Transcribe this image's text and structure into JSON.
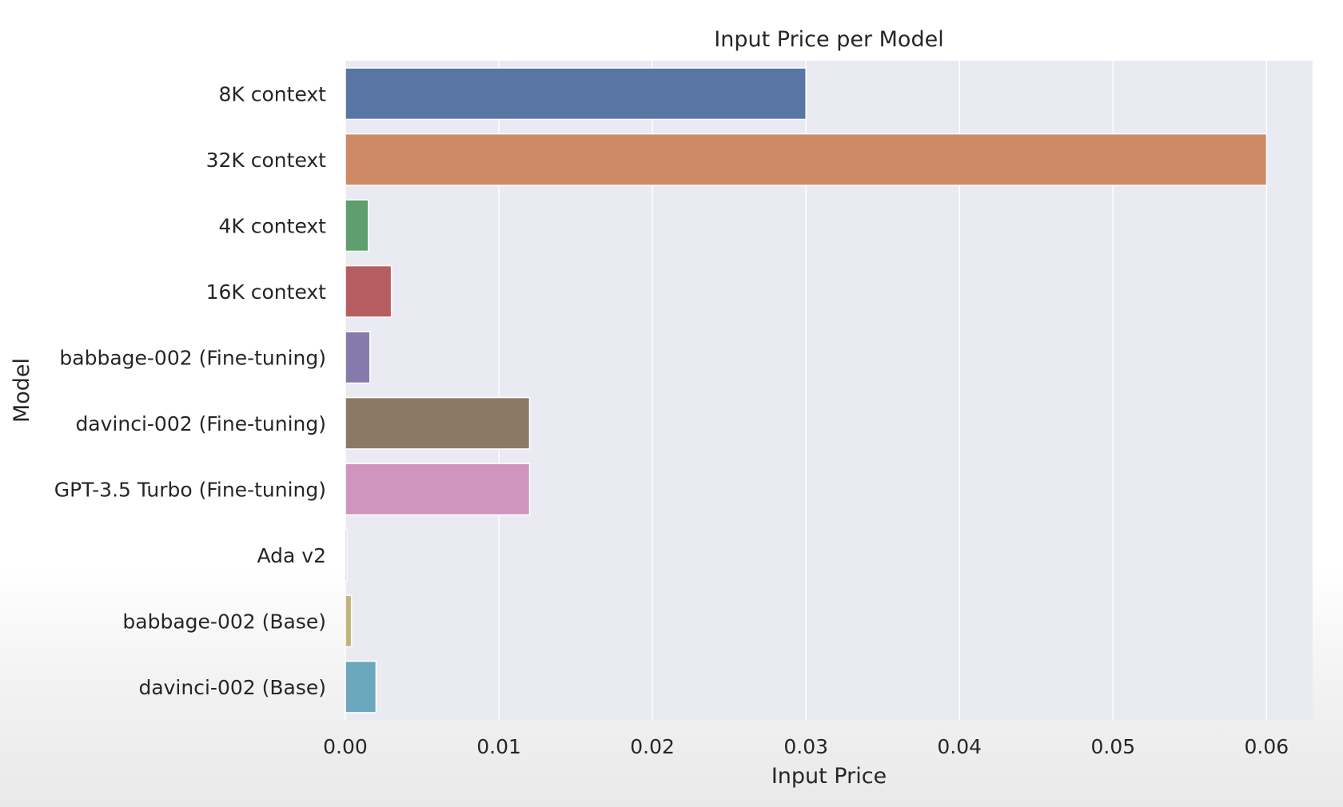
{
  "chart_data": {
    "type": "bar",
    "orientation": "horizontal",
    "title": "Input Price per Model",
    "xlabel": "Input Price",
    "ylabel": "Model",
    "categories": [
      "8K context",
      "32K context",
      "4K context",
      "16K context",
      "babbage-002 (Fine-tuning)",
      "davinci-002 (Fine-tuning)",
      "GPT-3.5 Turbo (Fine-tuning)",
      "Ada v2",
      "babbage-002 (Base)",
      "davinci-002 (Base)"
    ],
    "values": [
      0.03,
      0.06,
      0.0015,
      0.003,
      0.0016,
      0.012,
      0.012,
      0.0001,
      0.0004,
      0.002
    ],
    "colors": [
      "#5975a4",
      "#cc8963",
      "#5f9e6e",
      "#b55d60",
      "#857aab",
      "#8d7866",
      "#d095bf",
      "#8c8c8c",
      "#c1b37f",
      "#6ca8bd"
    ],
    "xlim": [
      0,
      0.063
    ],
    "xticks": [
      "0.00",
      "0.01",
      "0.02",
      "0.03",
      "0.04",
      "0.05",
      "0.06"
    ],
    "grid": true,
    "background": "#eaeaf2"
  }
}
